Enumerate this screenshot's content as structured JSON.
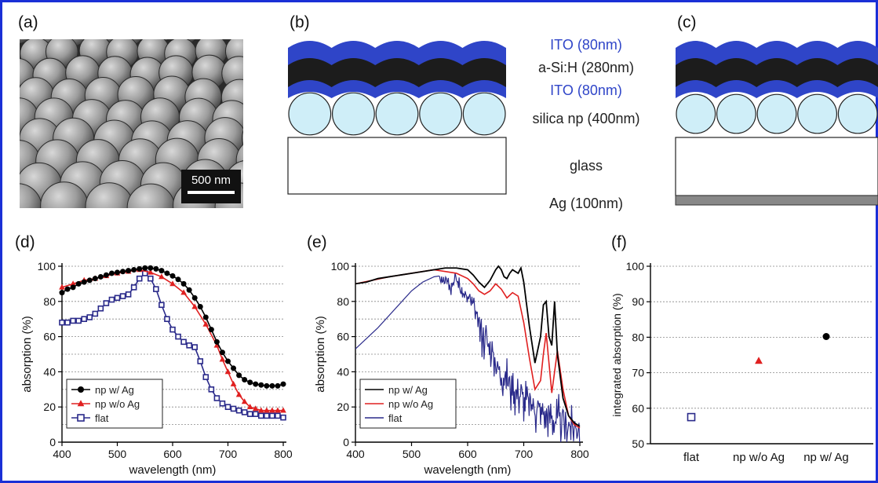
{
  "panels": {
    "a": "(a)",
    "b": "(b)",
    "c": "(c)",
    "d": "(d)",
    "e": "(e)",
    "f": "(f)"
  },
  "sem": {
    "scale_bar": "500 nm"
  },
  "stack_labels": {
    "ito_top": "ITO (80nm)",
    "asi": "a-Si:H (280nm)",
    "ito_bottom": "ITO (80nm)",
    "silica": "silica np (400nm)",
    "glass": "glass",
    "ag": "Ag (100nm)"
  },
  "colors": {
    "border": "#1a2fd6",
    "ito": "#2f45c8",
    "asi": "#1c1c1c",
    "silica": "#cfeef8",
    "ag": "#888888",
    "np_w_ag": "#000000",
    "np_wo_ag": "#e02020",
    "flat": "#2a2a8a"
  },
  "chart_data": [
    {
      "id": "d",
      "type": "line",
      "xlabel": "wavelength (nm)",
      "ylabel": "absorption (%)",
      "xlim": [
        400,
        800
      ],
      "ylim": [
        0,
        100
      ],
      "xticks": [
        400,
        500,
        600,
        700,
        800
      ],
      "yticks": [
        0,
        20,
        40,
        60,
        80,
        100
      ],
      "legend": "bottom-left",
      "series": [
        {
          "name": "np w/ Ag",
          "marker": "circle",
          "color": "#000000",
          "x": [
            400,
            410,
            420,
            430,
            440,
            450,
            460,
            470,
            480,
            490,
            500,
            510,
            520,
            530,
            540,
            550,
            560,
            570,
            580,
            590,
            600,
            610,
            620,
            630,
            640,
            650,
            660,
            670,
            680,
            690,
            700,
            710,
            720,
            730,
            740,
            750,
            760,
            770,
            780,
            790,
            800
          ],
          "y": [
            85,
            87,
            88,
            90,
            91,
            92,
            93,
            94,
            95,
            96,
            96.5,
            97,
            97.5,
            98,
            98.5,
            99,
            99,
            98.5,
            97.5,
            96,
            94.5,
            92.5,
            90,
            86.5,
            82,
            77,
            71,
            64,
            57,
            51,
            46,
            42,
            38,
            35.5,
            34,
            33,
            32.5,
            32,
            32,
            32,
            33
          ]
        },
        {
          "name": "np w/o Ag",
          "marker": "triangle",
          "color": "#e02020",
          "x": [
            400,
            420,
            440,
            460,
            480,
            500,
            520,
            540,
            560,
            580,
            600,
            620,
            640,
            660,
            680,
            690,
            700,
            710,
            720,
            730,
            740,
            750,
            760,
            770,
            780,
            790,
            800
          ],
          "y": [
            88,
            90,
            92,
            93,
            94.5,
            96,
            97,
            98,
            96.5,
            94,
            90,
            85,
            77,
            67,
            55,
            47,
            40,
            33,
            27,
            23,
            20,
            19,
            18,
            18,
            18,
            18,
            18
          ]
        },
        {
          "name": "flat",
          "marker": "square",
          "color": "#2a2a8a",
          "x": [
            400,
            410,
            420,
            430,
            440,
            450,
            460,
            470,
            480,
            490,
            500,
            510,
            520,
            530,
            540,
            550,
            560,
            570,
            580,
            590,
            600,
            610,
            620,
            630,
            640,
            650,
            660,
            670,
            680,
            690,
            700,
            710,
            720,
            730,
            740,
            750,
            760,
            770,
            780,
            790,
            800
          ],
          "y": [
            68,
            68,
            69,
            69,
            70,
            71,
            73,
            76,
            79,
            81,
            82,
            83,
            84,
            88,
            93,
            96,
            93,
            87,
            78,
            70,
            64,
            60,
            57,
            55,
            54,
            46,
            37,
            30,
            25,
            22,
            20,
            19,
            18,
            17,
            16,
            16,
            15,
            15,
            15,
            15,
            14
          ]
        }
      ]
    },
    {
      "id": "e",
      "type": "line",
      "xlabel": "wavelength (nm)",
      "ylabel": "absorption (%)",
      "xlim": [
        400,
        800
      ],
      "ylim": [
        0,
        100
      ],
      "xticks": [
        400,
        500,
        600,
        700,
        800
      ],
      "yticks": [
        0,
        20,
        40,
        60,
        80,
        100
      ],
      "legend": "bottom-left",
      "series": [
        {
          "name": "np w/ Ag",
          "color": "#000000",
          "x": [
            400,
            420,
            440,
            460,
            480,
            500,
            520,
            540,
            560,
            580,
            600,
            610,
            620,
            630,
            640,
            650,
            655,
            660,
            665,
            670,
            675,
            680,
            690,
            695,
            700,
            710,
            720,
            730,
            735,
            740,
            745,
            750,
            755,
            760,
            770,
            780,
            790,
            800
          ],
          "y": [
            90,
            91,
            93,
            94,
            95,
            96,
            97,
            98,
            99,
            99,
            98,
            95,
            91,
            88,
            92,
            98,
            100,
            98,
            94,
            93,
            96,
            98,
            96,
            99,
            91,
            66,
            45,
            60,
            78,
            80,
            60,
            55,
            80,
            50,
            25,
            15,
            11,
            9
          ]
        },
        {
          "name": "np w/o Ag",
          "color": "#e02020",
          "x": [
            400,
            460,
            500,
            540,
            560,
            580,
            600,
            610,
            620,
            630,
            640,
            650,
            660,
            670,
            680,
            690,
            700,
            710,
            720,
            730,
            735,
            740,
            745,
            750,
            755,
            760,
            770,
            780,
            790,
            800
          ],
          "y": [
            90,
            94,
            96,
            98,
            97,
            96,
            93,
            90,
            86,
            84,
            86,
            90,
            87,
            82,
            85,
            83,
            68,
            48,
            30,
            35,
            50,
            62,
            45,
            28,
            40,
            52,
            30,
            15,
            10,
            8
          ],
          "hidden_under_black_before_nm": 560
        },
        {
          "name": "flat",
          "color": "#2a2a8a",
          "x": [
            400,
            420,
            440,
            460,
            480,
            500,
            520,
            540,
            560,
            570,
            580,
            590,
            600,
            610,
            620,
            630,
            640,
            650,
            660,
            670,
            680,
            690,
            700,
            710,
            720,
            730,
            740,
            750,
            760,
            770,
            780,
            790,
            800
          ],
          "y": [
            53,
            59,
            65,
            72,
            79,
            86,
            91,
            94,
            95,
            90,
            93,
            84,
            82,
            78,
            68,
            61,
            52,
            46,
            40,
            35,
            31,
            28,
            25,
            22,
            20,
            18,
            16,
            14,
            12,
            11,
            10,
            9,
            10
          ],
          "noise": true
        }
      ]
    },
    {
      "id": "f",
      "type": "scatter",
      "ylabel": "integrated absorption (%)",
      "categories": [
        "flat",
        "np w/o Ag",
        "np w/ Ag"
      ],
      "ylim": [
        50,
        100
      ],
      "yticks": [
        50,
        60,
        70,
        80,
        90,
        100
      ],
      "points": [
        {
          "category": "flat",
          "value": 57.5,
          "marker": "square",
          "color": "#2a2a8a"
        },
        {
          "category": "np w/o Ag",
          "value": 73.3,
          "marker": "triangle",
          "color": "#e02020"
        },
        {
          "category": "np w/ Ag",
          "value": 80.2,
          "marker": "circle",
          "color": "#000000"
        }
      ]
    }
  ]
}
